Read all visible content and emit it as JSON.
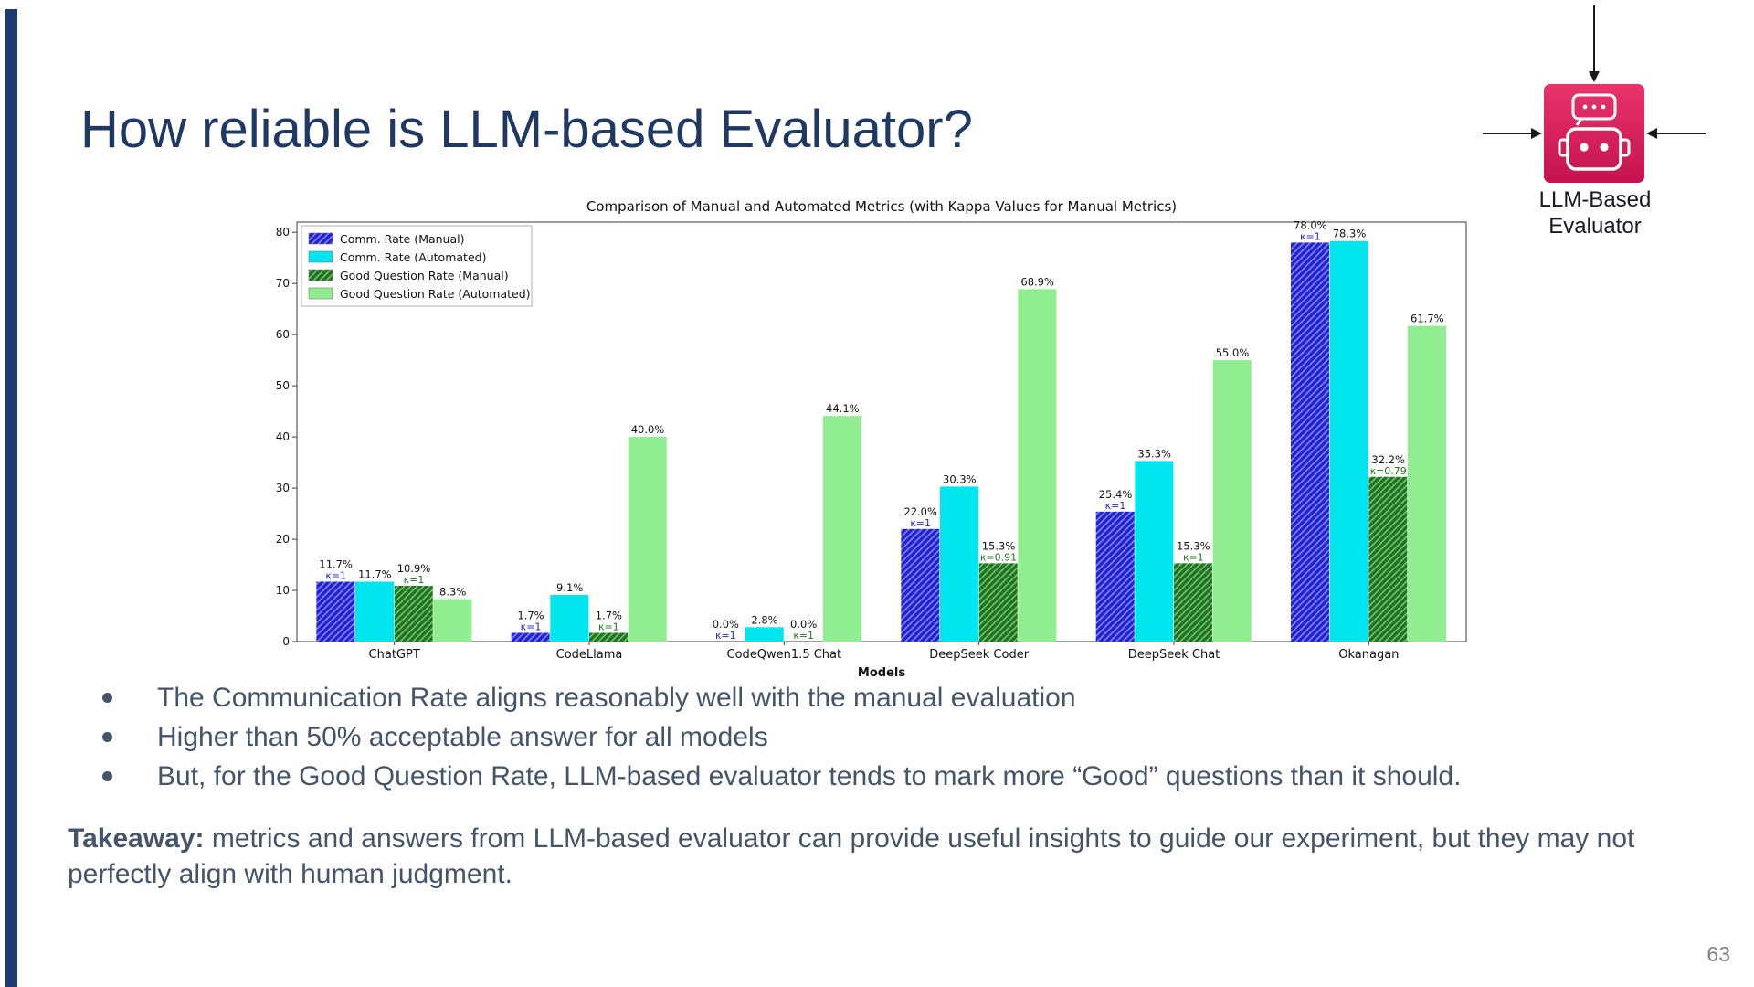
{
  "slide": {
    "title": "How reliable is LLM-based Evaluator?",
    "bullets": [
      "The Communication Rate aligns reasonably well with the manual evaluation",
      "Higher than 50% acceptable answer for all models",
      "But, for the Good Question Rate, LLM-based evaluator tends to mark more “Good” questions than it should."
    ],
    "takeaway_label": "Takeaway:",
    "takeaway_text": " metrics and answers from LLM-based evaluator can provide useful insights to guide our experiment, but they may not perfectly align with human judgment.",
    "page_number": "63"
  },
  "evaluator_icon": {
    "caption_line1": "LLM-Based",
    "caption_line2": "Evaluator"
  },
  "colors": {
    "title": "#1f3864",
    "accent_bar": "#1e3c6e",
    "body_text": "#44546a",
    "icon_pink_top": "#e8336b",
    "icon_pink_bottom": "#c4134f",
    "arrow": "#1a1a1a"
  },
  "chart_data": {
    "type": "bar",
    "title": "Comparison of Manual and Automated Metrics (with Kappa Values for Manual Metrics)",
    "xlabel": "Models",
    "ylabel": "",
    "ylim": [
      0,
      82
    ],
    "yticks": [
      0,
      10,
      20,
      30,
      40,
      50,
      60,
      70,
      80
    ],
    "grid": false,
    "legend_position": "top-left",
    "categories": [
      "ChatGPT",
      "CodeLlama",
      "CodeQwen1.5 Chat",
      "DeepSeek Coder",
      "DeepSeek Chat",
      "Okanagan"
    ],
    "series": [
      {
        "name": "Comm. Rate (Manual)",
        "color": "#2323d9",
        "hatch": true,
        "values": [
          11.7,
          1.7,
          0.0,
          22.0,
          25.4,
          78.0
        ],
        "kappas": [
          "κ=1",
          "κ=1",
          "κ=1",
          "κ=1",
          "κ=1",
          "κ=1"
        ]
      },
      {
        "name": "Comm. Rate (Automated)",
        "color": "#00e5ee",
        "hatch": false,
        "values": [
          11.7,
          9.1,
          2.8,
          30.3,
          35.3,
          78.3
        ]
      },
      {
        "name": "Good Question Rate (Manual)",
        "color": "#1a7a1a",
        "hatch": true,
        "values": [
          10.9,
          1.7,
          0.0,
          15.3,
          15.3,
          32.2
        ],
        "kappas": [
          "κ=1",
          "κ=1",
          "κ=1",
          "κ=0.91",
          "κ=1",
          "κ=0.79"
        ]
      },
      {
        "name": "Good Question Rate (Automated)",
        "color": "#90ee90",
        "hatch": false,
        "values": [
          8.3,
          40.0,
          44.1,
          68.9,
          55.0,
          61.7
        ]
      }
    ]
  }
}
